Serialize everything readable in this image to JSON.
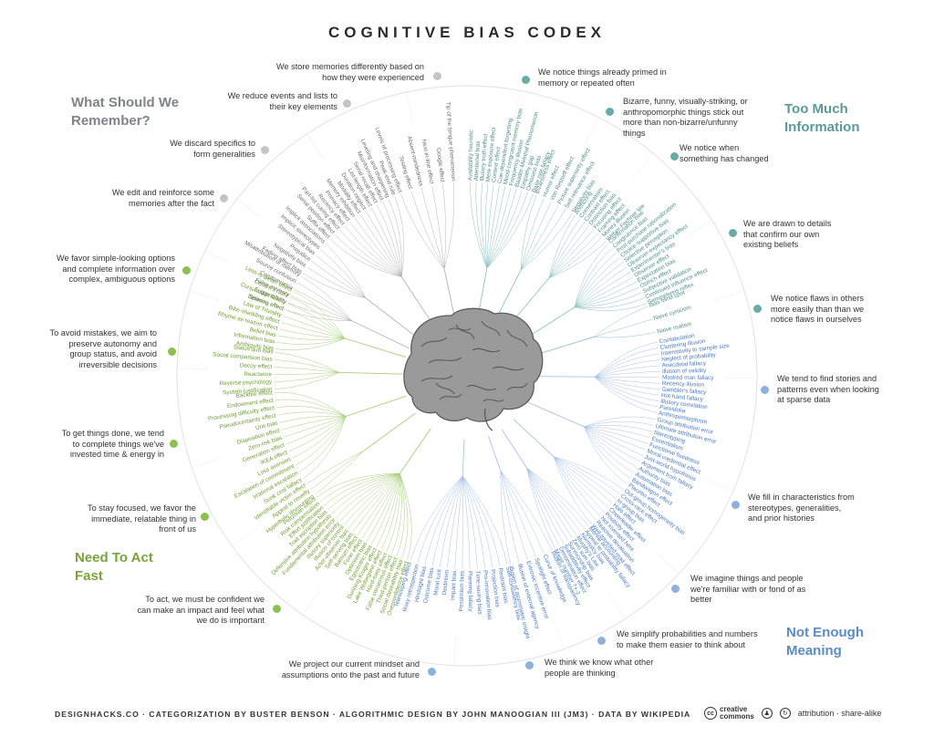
{
  "title": "COGNITIVE BIAS CODEX",
  "quadrants": [
    {
      "title": "What Should We Remember?",
      "color": "#7d8585"
    },
    {
      "title": "Too Much Information",
      "color": "#5a9a98"
    },
    {
      "title": "Need To Act Fast",
      "color": "#79a43a"
    },
    {
      "title": "Not Enough Meaning",
      "color": "#5b8cc5"
    }
  ],
  "problems": [
    {
      "text": "We store memories differently based on how they were experienced",
      "color": "#c4c4c4",
      "hub": {
        "r": 120,
        "a": 150
      },
      "biases": [
        "Levels of processing effect",
        "Testing effect",
        "Absent-mindedness",
        "Next-in-line effect",
        "Google effect",
        "Tip of the tongue phenomenon"
      ]
    },
    {
      "text": "We reduce events and lists to their key elements",
      "color": "#c4c4c4",
      "hub": {
        "r": 130,
        "a": 136
      },
      "biases": [
        "Suffix effect",
        "Serial position effect",
        "Part-list cueing effect",
        "Recency effect",
        "Primacy effect",
        "Memory inhibition",
        "Modality effect",
        "Duration neglect",
        "List-length effect",
        "Serial recall effect",
        "Misinformation effect",
        "Leveling and sharpening",
        "Peak-end rule"
      ]
    },
    {
      "text": "We discard specifics to form generalities",
      "color": "#c4c4c4",
      "hub": {
        "r": 140,
        "a": 124
      },
      "biases": [
        "Fading affect bias",
        "Negativity bias",
        "Prejudice",
        "Stereotypical bias",
        "Implicit stereotypes",
        "Implicit associations"
      ]
    },
    {
      "text": "We edit and reinforce some memories after the fact",
      "color": "#c4c4c4",
      "hub": {
        "r": 140,
        "a": 112
      },
      "biases": [
        "Spacing effect",
        "Suggestibility",
        "False memory",
        "Cryptomnesia",
        "Source confusion",
        "Misattribution of memory"
      ]
    },
    {
      "text": "We notice things already primed in memory or repeated often",
      "color": "#6aaba8",
      "hub": {
        "r": 120,
        "a": 30
      },
      "biases": [
        "Availability heuristic",
        "Attentional bias",
        "Illusory truth effect",
        "Mere exposure effect",
        "Context effect",
        "Cue-dependent forgetting",
        "Mood-congruent memory bias",
        "Frequency illusion",
        "Baader-Meinhof Phenomenon",
        "Empathy gap",
        "Omission bias",
        "Base rate fallacy"
      ]
    },
    {
      "text": "Bizarre, funny, visually-striking, or anthropomorphic things stick out more than non-bizarre/unfunny things",
      "color": "#6aaba8",
      "hub": {
        "r": 130,
        "a": 44
      },
      "biases": [
        "Bizarreness effect",
        "Humor effect",
        "Von Restorff effect",
        "Picture superiority effect",
        "Self-relevance effect",
        "Negativity bias"
      ]
    },
    {
      "text": "We notice when something has changed",
      "color": "#6aaba8",
      "hub": {
        "r": 140,
        "a": 56
      },
      "biases": [
        "Anchoring",
        "Conservatism",
        "Contrast effect",
        "Distinction bias",
        "Focusing effect",
        "Framing effect",
        "Money illusion",
        "Weber-Fechner law"
      ]
    },
    {
      "text": "We are drawn to details that confirm our own existing beliefs",
      "color": "#6aaba8",
      "hub": {
        "r": 140,
        "a": 68
      },
      "biases": [
        "Confirmation bias",
        "Congruence bias",
        "Post-purchase rationalization",
        "Choice-supportive bias",
        "Selective perception",
        "Observer-expectancy effect",
        "Experimenter's bias",
        "Observer effect",
        "Expectation bias",
        "Ostrich effect",
        "Subjective validation",
        "Continued influence effect",
        "Semmelweis reflex"
      ]
    },
    {
      "text": "We notice flaws in others more easily than than we notice flaws in ourselves",
      "color": "#6aaba8",
      "hub": {
        "r": 145,
        "a": 80
      },
      "biases": [
        "Bias blind spot",
        "Naive cynicism",
        "Naive realism"
      ]
    },
    {
      "text": "We tend to find stories and patterns even when looking at sparse data",
      "color": "#8fb0dc",
      "hub": {
        "r": 140,
        "a": 98
      },
      "biases": [
        "Confabulation",
        "Clustering illusion",
        "Insensitivity to sample size",
        "Neglect of probability",
        "Anecdotal fallacy",
        "Illusion of validity",
        "Masked man fallacy",
        "Recency illusion",
        "Gambler's fallacy",
        "Hot-hand fallacy",
        "Illusory correlation",
        "Pareidolia",
        "Anthropomorphism"
      ]
    },
    {
      "text": "We fill in characteristics from stereotypes, generalities, and prior histories",
      "color": "#8fb0dc",
      "hub": {
        "r": 140,
        "a": 116
      },
      "biases": [
        "Group attribution error",
        "Ultimate attribution error",
        "Stereotyping",
        "Essentialism",
        "Functional fixedness",
        "Moral credential effect",
        "Just-world hypothesis",
        "Argument from fallacy",
        "Authority bias",
        "Automation bias",
        "Bandwagon effect",
        "Placebo effect"
      ]
    },
    {
      "text": "We imagine things and people we're familiar with or fond of as better",
      "color": "#8fb0dc",
      "hub": {
        "r": 130,
        "a": 132
      },
      "biases": [
        "Out-group homogeneity bias",
        "Cross-race effect",
        "In-group bias",
        "Halo effect",
        "Cheerleader effect",
        "Positivity effect",
        "Not invented here",
        "Reactive devaluation",
        "Well-travelled road effect"
      ]
    },
    {
      "text": "We simplify probabilities and numbers to make them easier to think about",
      "color": "#8fb0dc",
      "hub": {
        "r": 120,
        "a": 146
      },
      "biases": [
        "Mental accounting",
        "Appeal to probability fallacy",
        "Normalcy bias",
        "Murphy's Law",
        "Zero sum bias",
        "Survivorship bias",
        "Subadditivity effect",
        "Denomination effect",
        "Magic number 7+-2"
      ]
    },
    {
      "text": "We think we know what other people are thinking",
      "color": "#8fb0dc",
      "hub": {
        "r": 110,
        "a": 160
      },
      "biases": [
        "Illusion of transparency",
        "Curse of knowledge",
        "Spotlight effect",
        "Extrinsic incentive error",
        "Illusion of external agency",
        "Illusion of asymmetric insight"
      ]
    },
    {
      "text": "We project our current mindset and assumptions onto the past and future",
      "color": "#8fb0dc",
      "hub": {
        "r": 110,
        "a": 190
      },
      "biases": [
        "Self-consistency bias",
        "Restraint bias",
        "Projection bias",
        "Pro-innovation bias",
        "Time-saving bias",
        "Planning fallacy",
        "Pessimism bias",
        "Impact bias",
        "Declinism",
        "Moral luck",
        "Outcome bias",
        "Hindsight bias",
        "Rosy retrospection",
        "Telescoping effect"
      ]
    },
    {
      "text": "To act, we must be confident we can make an impact and feel what we do is important",
      "color": "#8cc152",
      "hub": {
        "r": 130,
        "a": 212
      },
      "biases": [
        "Overconfidence effect",
        "Social desirability bias",
        "Third-person effect",
        "False consensus effect",
        "Hard-easy effect",
        "Lake Wobegone effect",
        "Dunning-Kruger effect",
        "Egocentric bias",
        "Optimism bias",
        "Forer effect",
        "Barnum effect",
        "Self-serving bias",
        "Actor-observer bias",
        "Illusion of control",
        "Illusory superiority",
        "Fundamental attribution error",
        "Defensive attribution hypothesis",
        "Trait ascription bias",
        "Effort justification",
        "Risk compensation",
        "Peltzman effect"
      ]
    },
    {
      "text": "To stay focused, we favor the immediate, relatable thing in front of us",
      "color": "#8cc152",
      "hub": {
        "r": 140,
        "a": 232
      },
      "biases": [
        "Hyperbolic discounting",
        "Appeal to novelty",
        "Identifiable victim effect"
      ]
    },
    {
      "text": "To get things done, we tend to complete things we've invested time & energy in",
      "color": "#8cc152",
      "hub": {
        "r": 140,
        "a": 250
      },
      "biases": [
        "Sunk cost fallacy",
        "Irrational escalation",
        "Escalation of commitment",
        "Loss aversion",
        "IKEA effect",
        "Generation effect",
        "Zero-risk bias",
        "Disposition effect",
        "Unit bias",
        "Pseudocertainty effect",
        "Processing difficulty effect",
        "Endowment effect",
        "Backfire effect"
      ]
    },
    {
      "text": "To avoid mistakes, we aim to preserve autonomy and group status, and avoid irreversible decisions",
      "color": "#8cc152",
      "hub": {
        "r": 140,
        "a": 268
      },
      "biases": [
        "System justification",
        "Reverse psychology",
        "Reactance",
        "Decoy effect",
        "Social comparison bias",
        "Status quo bias"
      ]
    },
    {
      "text": "We favor simple-looking options and complete information over complex, ambiguous options",
      "color": "#8cc152",
      "hub": {
        "r": 140,
        "a": 284
      },
      "biases": [
        "Ambiguity bias",
        "Information bias",
        "Belief bias",
        "Rhyme as reason effect",
        "Bike-shedding effect",
        "Law of Triviality",
        "Delmore effect",
        "Conjunction fallacy",
        "Occam's razor",
        "Less-is-better effect"
      ]
    }
  ],
  "footer": "DESIGNHACKS.CO · CATEGORIZATION BY BUSTER BENSON · ALGORITHMIC DESIGN BY JOHN MANOOGIAN III (JM3) · DATA BY WIKIPEDIA",
  "license": {
    "cc_line1": "creative",
    "cc_line2": "commons",
    "cc_symbol": "cc",
    "text": "attribution · share-alike",
    "icon_names": [
      "creative-commons-icon",
      "attribution-icon",
      "share-alike-icon"
    ]
  }
}
